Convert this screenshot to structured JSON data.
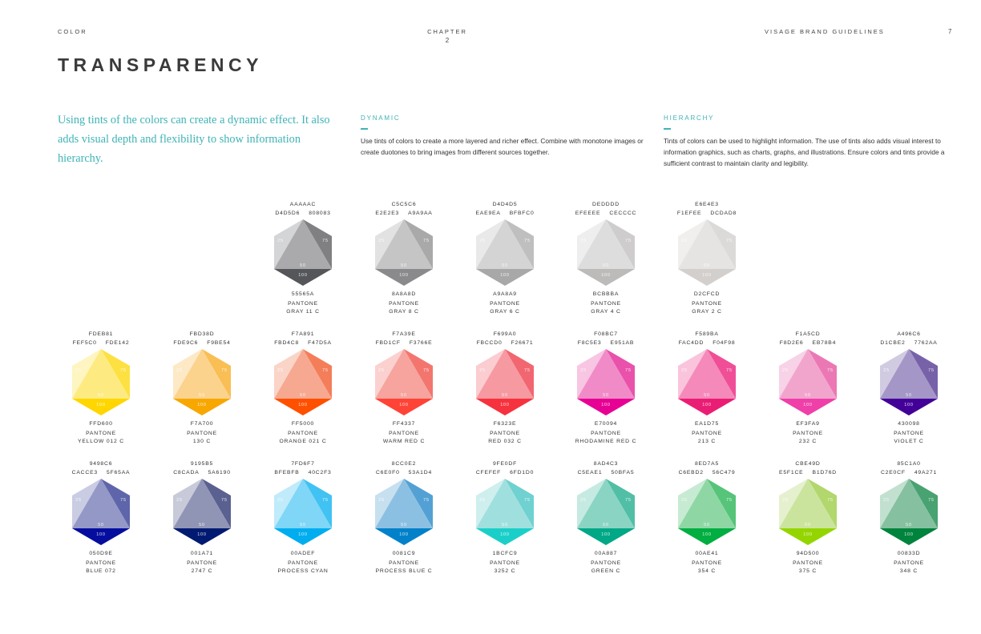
{
  "header": {
    "section": "COLOR",
    "chapter_label": "CHAPTER",
    "chapter_number": "2",
    "brand": "VISAGE BRAND GUIDELINES",
    "page": "7"
  },
  "title": "TRANSPARENCY",
  "intro": "Using tints of the colors can create a dynamic effect. It also adds visual depth and flexibility to show information hierarchy.",
  "dynamic": {
    "heading": "DYNAMIC",
    "text": "Use tints of colors to create a more layered and richer effect. Combine with monotone images or create duotones to bring images from different sources together."
  },
  "hierarchy": {
    "heading": "HIERARCHY",
    "text": "Tints of colors can be used to highlight information. The use of tints also adds visual interest to information graphics, such as charts, graphs, and illustrations. Ensure colors and tints provide a sufficient contrast to maintain clarity and legibility."
  },
  "tint_labels": {
    "t25": "25",
    "t50": "50",
    "t75": "75",
    "t100": "100"
  },
  "rows": [
    [
      {
        "top": "AAAAAC",
        "left": "D4D5D6",
        "right": "808083",
        "base": "55565A",
        "pantone": "PANTONE",
        "name": "GRAY 11 C"
      },
      {
        "top": "C5C5C6",
        "left": "E2E2E3",
        "right": "A9A9AA",
        "base": "8A8A8D",
        "pantone": "PANTONE",
        "name": "GRAY 8 C"
      },
      {
        "top": "D4D4D5",
        "left": "EAE9EA",
        "right": "BFBFC0",
        "base": "A9A8A9",
        "pantone": "PANTONE",
        "name": "GRAY 6 C"
      },
      {
        "top": "DEDDDD",
        "left": "EFEEEE",
        "right": "CECCCC",
        "base": "BCBBBA",
        "pantone": "PANTONE",
        "name": "GRAY 4 C"
      },
      {
        "top": "E6E4E3",
        "left": "F1EFEE",
        "right": "DCDAD8",
        "base": "D2CFCD",
        "pantone": "PANTONE",
        "name": "GRAY 2 C"
      }
    ],
    [
      {
        "top": "FDEB81",
        "left": "FEF5C0",
        "right": "FDE142",
        "base": "FFD600",
        "pantone": "PANTONE",
        "name": "YELLOW 012 C"
      },
      {
        "top": "FBD38D",
        "left": "FDE9C6",
        "right": "F9BE54",
        "base": "F7A700",
        "pantone": "PANTONE",
        "name": "130 C"
      },
      {
        "top": "F7A891",
        "left": "FBD4C8",
        "right": "F47D5A",
        "base": "FF5000",
        "pantone": "PANTONE",
        "name": "ORANGE 021 C"
      },
      {
        "top": "F7A39E",
        "left": "FBD1CF",
        "right": "F3766E",
        "base": "FF4337",
        "pantone": "PANTONE",
        "name": "WARM RED C"
      },
      {
        "top": "F699A0",
        "left": "FBCCD0",
        "right": "F26671",
        "base": "F6323E",
        "pantone": "PANTONE",
        "name": "RED 032 C"
      },
      {
        "top": "F08BC7",
        "left": "F8C5E3",
        "right": "E951AB",
        "base": "E70094",
        "pantone": "PANTONE",
        "name": "RHODAMINE RED C"
      },
      {
        "top": "F589BA",
        "left": "FAC4DD",
        "right": "F04F98",
        "base": "EA1D75",
        "pantone": "PANTONE",
        "name": "213 C"
      },
      {
        "top": "F1A5CD",
        "left": "F8D2E6",
        "right": "EB78B4",
        "base": "EF3FA9",
        "pantone": "PANTONE",
        "name": "232 C"
      },
      {
        "top": "A496C6",
        "left": "D1CBE2",
        "right": "7762AA",
        "base": "430098",
        "pantone": "PANTONE",
        "name": "VIOLET C"
      }
    ],
    [
      {
        "top": "9498C6",
        "left": "CACCE3",
        "right": "5F65AA",
        "base": "050D9E",
        "pantone": "PANTONE",
        "name": "BLUE 072"
      },
      {
        "top": "9195B5",
        "left": "C8CADA",
        "right": "5A6190",
        "base": "001A71",
        "pantone": "PANTONE",
        "name": "2747 C"
      },
      {
        "top": "7FD6F7",
        "left": "BFEBFB",
        "right": "40C2F3",
        "base": "00ADEF",
        "pantone": "PANTONE",
        "name": "PROCESS CYAN"
      },
      {
        "top": "8CC0E2",
        "left": "C6E0F0",
        "right": "53A1D4",
        "base": "0081C9",
        "pantone": "PANTONE",
        "name": "PROCESS BLUE C"
      },
      {
        "top": "9FE0DF",
        "left": "CFEFEF",
        "right": "6FD1D0",
        "base": "1BCFC9",
        "pantone": "PANTONE",
        "name": "3252 C"
      },
      {
        "top": "8AD4C3",
        "left": "C5EAE1",
        "right": "50BFA5",
        "base": "00A887",
        "pantone": "PANTONE",
        "name": "GREEN C"
      },
      {
        "top": "8ED7A5",
        "left": "C6EBD2",
        "right": "56C479",
        "base": "00AE41",
        "pantone": "PANTONE",
        "name": "354 C"
      },
      {
        "top": "CBE49D",
        "left": "E5F1CE",
        "right": "B1D76D",
        "base": "94D500",
        "pantone": "PANTONE",
        "name": "375 C"
      },
      {
        "top": "85C1A0",
        "left": "C2E0CF",
        "right": "49A271",
        "base": "00833D",
        "pantone": "PANTONE",
        "name": "348 C"
      }
    ]
  ]
}
